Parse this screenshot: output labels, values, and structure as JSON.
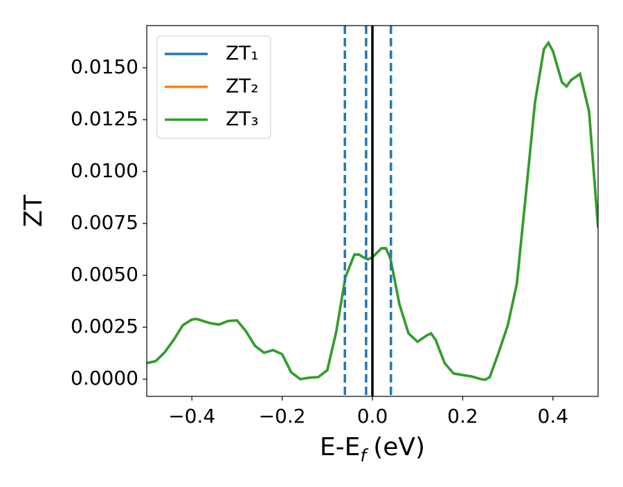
{
  "chart_data": {
    "type": "line",
    "ylabel": "ZT",
    "xlabel": [
      "E-E",
      "f",
      "(eV)"
    ],
    "x": [
      -0.5,
      -0.48,
      -0.46,
      -0.44,
      -0.42,
      -0.4,
      -0.39,
      -0.36,
      -0.34,
      -0.32,
      -0.3,
      -0.28,
      -0.26,
      -0.24,
      -0.22,
      -0.2,
      -0.18,
      -0.16,
      -0.14,
      -0.12,
      -0.1,
      -0.08,
      -0.06,
      -0.04,
      -0.03,
      -0.02,
      -0.01,
      0,
      0.02,
      0.03,
      0.04,
      0.06,
      0.08,
      0.1,
      0.12,
      0.13,
      0.14,
      0.16,
      0.18,
      0.2,
      0.22,
      0.24,
      0.25,
      0.26,
      0.28,
      0.3,
      0.32,
      0.34,
      0.36,
      0.38,
      0.39,
      0.4,
      0.42,
      0.43,
      0.44,
      0.46,
      0.48,
      0.5
    ],
    "series": [
      {
        "name": "ZT₁",
        "color": "#1f77b4",
        "values": [
          0.00077,
          0.00087,
          0.0013,
          0.0019,
          0.0026,
          0.00287,
          0.0029,
          0.0027,
          0.00263,
          0.0028,
          0.00283,
          0.0023,
          0.0016,
          0.00127,
          0.0014,
          0.0012,
          0.00033,
          0.0,
          7e-05,
          0.0001,
          0.00043,
          0.0023,
          0.0049,
          0.006,
          0.006,
          0.00587,
          0.00577,
          0.00587,
          0.0063,
          0.0063,
          0.0058,
          0.0036,
          0.0022,
          0.0018,
          0.0021,
          0.0022,
          0.0019,
          0.00077,
          0.00027,
          0.0002,
          0.00013,
          0.0,
          -3e-05,
          0.0001,
          0.0013,
          0.0026,
          0.0046,
          0.0089,
          0.0133,
          0.0159,
          0.0162,
          0.0158,
          0.0143,
          0.0141,
          0.0144,
          0.0147,
          0.0129,
          0.0073
        ]
      },
      {
        "name": "ZT₂",
        "color": "#ff7f0e",
        "values": [
          0.00077,
          0.00087,
          0.0013,
          0.0019,
          0.0026,
          0.00287,
          0.0029,
          0.0027,
          0.00263,
          0.0028,
          0.00283,
          0.0023,
          0.0016,
          0.00127,
          0.0014,
          0.0012,
          0.00033,
          0.0,
          7e-05,
          0.0001,
          0.00043,
          0.0023,
          0.0049,
          0.006,
          0.006,
          0.00587,
          0.00577,
          0.00587,
          0.0063,
          0.0063,
          0.0058,
          0.0036,
          0.0022,
          0.0018,
          0.0021,
          0.0022,
          0.0019,
          0.00077,
          0.00027,
          0.0002,
          0.00013,
          0.0,
          -3e-05,
          0.0001,
          0.0013,
          0.0026,
          0.0046,
          0.0089,
          0.0133,
          0.0159,
          0.0162,
          0.0158,
          0.0143,
          0.0141,
          0.0144,
          0.0147,
          0.0129,
          0.0073
        ]
      },
      {
        "name": "ZT₃",
        "color": "#2ca02c",
        "values": [
          0.00077,
          0.00087,
          0.0013,
          0.0019,
          0.0026,
          0.00287,
          0.0029,
          0.0027,
          0.00263,
          0.0028,
          0.00283,
          0.0023,
          0.0016,
          0.00127,
          0.0014,
          0.0012,
          0.00033,
          0.0,
          7e-05,
          0.0001,
          0.00043,
          0.0023,
          0.0049,
          0.006,
          0.006,
          0.00587,
          0.00577,
          0.00587,
          0.0063,
          0.0063,
          0.0058,
          0.0036,
          0.0022,
          0.0018,
          0.0021,
          0.0022,
          0.0019,
          0.00077,
          0.00027,
          0.0002,
          0.00013,
          0.0,
          -3e-05,
          0.0001,
          0.0013,
          0.0026,
          0.0046,
          0.0089,
          0.0133,
          0.0159,
          0.0162,
          0.0158,
          0.0143,
          0.0141,
          0.0144,
          0.0147,
          0.0129,
          0.0073
        ]
      }
    ],
    "vlines": [
      {
        "x": -0.061,
        "color": "#1f77b4",
        "dashed": true
      },
      {
        "x": -0.014,
        "color": "#1f77b4",
        "dashed": true
      },
      {
        "x": 0.041,
        "color": "#1f77b4",
        "dashed": true
      },
      {
        "x": 0,
        "color": "#000000",
        "dashed": false
      }
    ],
    "xlim": [
      -0.5,
      0.5
    ],
    "ylim": [
      -0.00083,
      0.01703
    ],
    "xticks": [
      {
        "value": -0.4,
        "label": "−0.4"
      },
      {
        "value": -0.2,
        "label": "−0.2"
      },
      {
        "value": 0,
        "label": "0.0"
      },
      0.2,
      0.4
    ],
    "yticks": [
      {
        "value": 0,
        "label": "0.0000"
      },
      {
        "value": 0.0025,
        "label": "0.0025"
      },
      {
        "value": 0.005,
        "label": "0.0050"
      },
      {
        "value": 0.0075,
        "label": "0.0075"
      },
      {
        "value": 0.01,
        "label": "0.0100"
      },
      {
        "value": 0.0125,
        "label": "0.0125"
      },
      {
        "value": 0.015,
        "label": "0.0150"
      }
    ],
    "legend": "upper left"
  }
}
